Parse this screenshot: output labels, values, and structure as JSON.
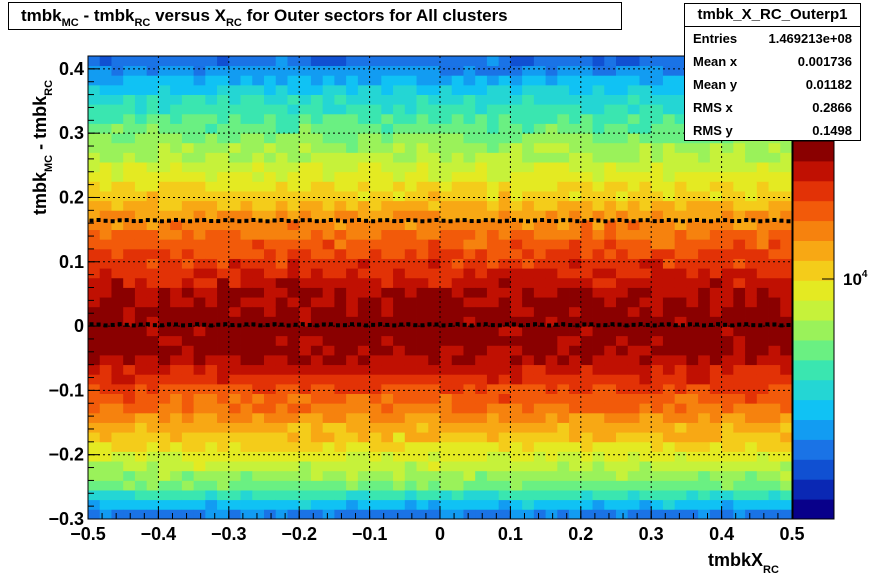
{
  "title": {
    "parts": [
      {
        "text": "tmbk",
        "sub": "MC"
      },
      {
        "text": " - tmbk",
        "sub": "RC"
      },
      {
        "text": " versus X",
        "sub": "RC"
      },
      {
        "text": " for Outer sectors for All clusters",
        "sub": ""
      }
    ]
  },
  "stats": {
    "name": "tmbk_X_RC_Outerp1",
    "rows": [
      {
        "label": "Entries",
        "value": "1.469213e+08"
      },
      {
        "label": "Mean x",
        "value": "0.001736"
      },
      {
        "label": "Mean y",
        "value": "0.01182"
      },
      {
        "label": "RMS x",
        "value": "0.2866"
      },
      {
        "label": "RMS y",
        "value": "0.1498"
      }
    ]
  },
  "x_axis": {
    "title": "tmbkX",
    "title_sub": "RC"
  },
  "y_axis": {
    "title_a": "tmbk",
    "sub_a": "MC",
    "title_b": " - tmbk",
    "sub_b": "RC"
  },
  "z_axis": {
    "base": "10",
    "exp": "4"
  },
  "chart_data": {
    "type": "heatmap",
    "xlim": [
      -0.5,
      0.5
    ],
    "ylim": [
      -0.3,
      0.42
    ],
    "x_ticks": [
      "−0.5",
      "−0.4",
      "−0.3",
      "−0.2",
      "−0.1",
      "0",
      "0.1",
      "0.2",
      "0.3",
      "0.4",
      "0.5"
    ],
    "x_tick_values": [
      -0.5,
      -0.4,
      -0.3,
      -0.2,
      -0.1,
      0,
      0.1,
      0.2,
      0.3,
      0.4,
      0.5
    ],
    "y_ticks": [
      "−0.3",
      "−0.2",
      "−0.1",
      "0",
      "0.1",
      "0.2",
      "0.3",
      "0.4"
    ],
    "y_tick_values": [
      -0.3,
      -0.2,
      -0.1,
      0,
      0.1,
      0.2,
      0.3,
      0.4
    ],
    "grid": true,
    "z_scale": "log",
    "density_profile": {
      "description_y": [
        -0.3,
        -0.25,
        -0.2,
        -0.15,
        -0.1,
        -0.05,
        0,
        0.05,
        0.1,
        0.15,
        0.2,
        0.25,
        0.3,
        0.35,
        0.4,
        0.42
      ],
      "level": [
        0.15,
        0.45,
        0.6,
        0.72,
        0.84,
        0.95,
        0.98,
        0.95,
        0.86,
        0.78,
        0.66,
        0.56,
        0.46,
        0.36,
        0.22,
        0.15
      ]
    },
    "color_scale": [
      "#08008a",
      "#0a28b4",
      "#1050d2",
      "#1a73e6",
      "#129cf2",
      "#10c2f4",
      "#24d6d4",
      "#3ae6b0",
      "#6af082",
      "#9af25a",
      "#c6f23a",
      "#e4ea22",
      "#f4cc1a",
      "#f8a814",
      "#f6820e",
      "#f25a0a",
      "#e23206",
      "#c01002",
      "#8a0000"
    ],
    "series": [
      {
        "type": "profile",
        "y_value": 0.164
      },
      {
        "type": "profile",
        "y_value": 0.002
      }
    ]
  }
}
